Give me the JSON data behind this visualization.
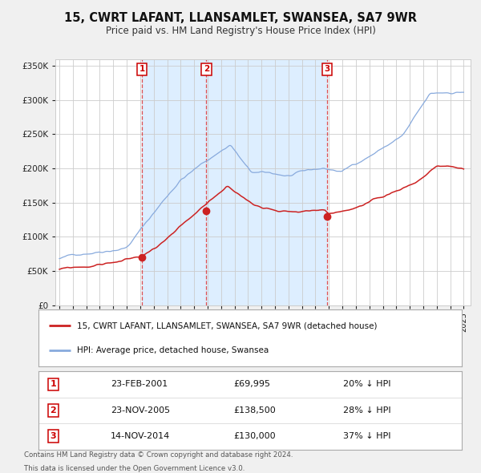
{
  "title": "15, CWRT LAFANT, LLANSAMLET, SWANSEA, SA7 9WR",
  "subtitle": "Price paid vs. HM Land Registry's House Price Index (HPI)",
  "legend_house": "15, CWRT LAFANT, LLANSAMLET, SWANSEA, SA7 9WR (detached house)",
  "legend_hpi": "HPI: Average price, detached house, Swansea",
  "transactions": [
    {
      "label": "1",
      "date": "23-FEB-2001",
      "price": 69995,
      "pct": "20%",
      "dir": "↓",
      "x_year": 2001.13
    },
    {
      "label": "2",
      "date": "23-NOV-2005",
      "price": 138500,
      "pct": "28%",
      "dir": "↓",
      "x_year": 2005.9
    },
    {
      "label": "3",
      "date": "14-NOV-2014",
      "price": 130000,
      "pct": "37%",
      "dir": "↓",
      "x_year": 2014.87
    }
  ],
  "footer1": "Contains HM Land Registry data © Crown copyright and database right 2024.",
  "footer2": "This data is licensed under the Open Government Licence v3.0.",
  "fig_bg": "#f0f0f0",
  "plot_bg": "#ffffff",
  "grid_color": "#cccccc",
  "hpi_color": "#88aadd",
  "house_color": "#cc2222",
  "dashed_color": "#dd3333",
  "highlight_bg": "#ddeeff",
  "ylim_max": 360000,
  "ylim_tick_max": 350000,
  "xlim_min": 1994.7,
  "xlim_max": 2025.5
}
